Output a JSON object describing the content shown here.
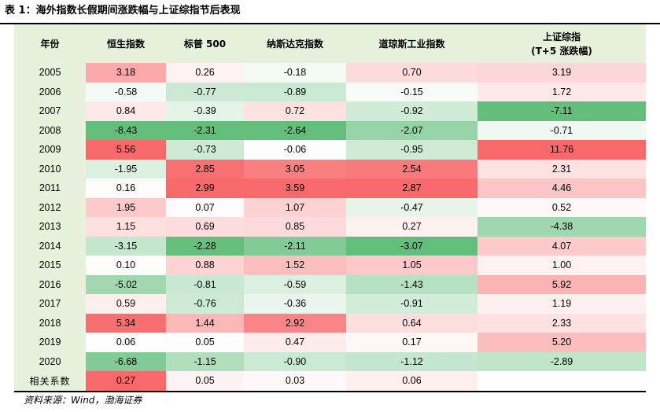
{
  "title": "表 1：海外指数长假期间涨跌幅与上证综指节后表现",
  "source": "资料来源：Wind，渤海证券",
  "colors": {
    "header_bg": "#e7f1dc",
    "positive_scale_max": "#f8696b",
    "negative_scale_max": "#63be7b",
    "neutral": "#ffffff"
  },
  "table": {
    "headers": [
      {
        "line1": "年份",
        "line2": ""
      },
      {
        "line1": "恒生指数",
        "line2": ""
      },
      {
        "line1": "标普 500",
        "line2": ""
      },
      {
        "line1": "纳斯达克指数",
        "line2": ""
      },
      {
        "line1": "道琼斯工业指数",
        "line2": ""
      },
      {
        "line1": "上证综指",
        "line2": "(T+5 涨跌幅)"
      }
    ],
    "rows": [
      {
        "year": "2005",
        "values": [
          "3.18",
          "0.26",
          "-0.18",
          "0.70",
          "3.19"
        ]
      },
      {
        "year": "2006",
        "values": [
          "-0.58",
          "-0.77",
          "-0.89",
          "-0.15",
          "1.72"
        ]
      },
      {
        "year": "2007",
        "values": [
          "0.84",
          "-0.39",
          "0.72",
          "-0.92",
          "-7.11"
        ]
      },
      {
        "year": "2008",
        "values": [
          "-8.43",
          "-2.31",
          "-2.64",
          "-2.07",
          "-0.71"
        ]
      },
      {
        "year": "2009",
        "values": [
          "5.56",
          "-0.73",
          "-0.06",
          "-0.95",
          "11.76"
        ]
      },
      {
        "year": "2010",
        "values": [
          "-1.95",
          "2.85",
          "3.05",
          "2.54",
          "2.31"
        ]
      },
      {
        "year": "2011",
        "values": [
          "0.16",
          "2.99",
          "3.59",
          "2.87",
          "4.46"
        ]
      },
      {
        "year": "2012",
        "values": [
          "1.95",
          "0.07",
          "1.07",
          "-0.47",
          "0.52"
        ]
      },
      {
        "year": "2013",
        "values": [
          "1.15",
          "0.69",
          "0.85",
          "0.27",
          "-4.38"
        ]
      },
      {
        "year": "2014",
        "values": [
          "-3.15",
          "-2.28",
          "-2.11",
          "-3.07",
          "4.07"
        ]
      },
      {
        "year": "2015",
        "values": [
          "0.10",
          "0.88",
          "1.52",
          "1.05",
          "1.00"
        ]
      },
      {
        "year": "2016",
        "values": [
          "-5.02",
          "-0.81",
          "-0.59",
          "-1.43",
          "5.92"
        ]
      },
      {
        "year": "2017",
        "values": [
          "0.59",
          "-0.76",
          "-0.36",
          "-0.91",
          "1.19"
        ]
      },
      {
        "year": "2018",
        "values": [
          "5.34",
          "1.44",
          "2.92",
          "0.64",
          "2.33"
        ]
      },
      {
        "year": "2019",
        "values": [
          "0.06",
          "0.05",
          "0.47",
          "0.17",
          "5.20"
        ]
      },
      {
        "year": "2020",
        "values": [
          "-6.68",
          "-1.15",
          "-0.90",
          "-1.12",
          "-2.89"
        ]
      }
    ],
    "correlation": {
      "label": "相关系数",
      "values": [
        "0.27",
        "0.05",
        "0.03",
        "0.06",
        ""
      ]
    }
  }
}
